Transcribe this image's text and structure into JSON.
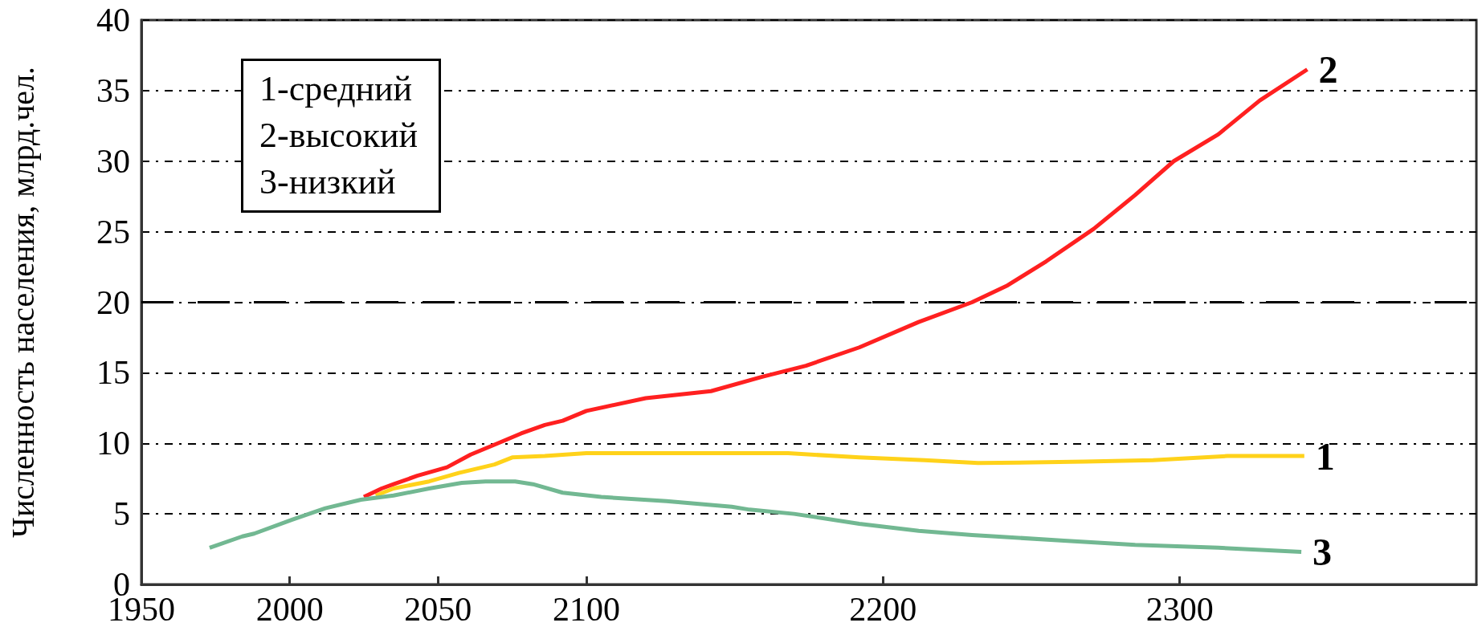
{
  "chart_data": {
    "type": "line",
    "ylabel": "Численность населения, млрд.чел.",
    "xlim": [
      1950,
      2400
    ],
    "xticks": [
      1950,
      2000,
      2050,
      2100,
      2200,
      2300
    ],
    "ylim": [
      0,
      40
    ],
    "yticks": [
      0,
      5,
      10,
      15,
      20,
      25,
      30,
      35,
      40
    ],
    "grid": "y",
    "legend": false,
    "annotations": [
      "1-средний",
      "2-высокий",
      "3-низкий"
    ],
    "ref_lines": [
      {
        "axis": "y",
        "value": 20,
        "label": null,
        "color": "#000000",
        "line_style": "dashed"
      }
    ],
    "series": [
      {
        "name": "1",
        "color": "#ffd21a",
        "x": [
          2029,
          2035,
          2047,
          2057,
          2069,
          2075,
          2086,
          2100,
          2168,
          2192,
          2214,
          2232,
          2268,
          2291,
          2316,
          2342
        ],
        "values": [
          6.3,
          6.8,
          7.3,
          7.9,
          8.5,
          9.0,
          9.1,
          9.3,
          9.3,
          9.0,
          8.8,
          8.6,
          8.7,
          8.8,
          9.1,
          9.1
        ]
      },
      {
        "name": "2",
        "color": "#ff2020",
        "x": [
          2025,
          2031,
          2035,
          2043,
          2053,
          2061,
          2069,
          2078,
          2086,
          2092,
          2100,
          2120,
          2142,
          2159,
          2174,
          2192,
          2212,
          2230,
          2242,
          2255,
          2271,
          2285,
          2298,
          2313,
          2327,
          2343
        ],
        "values": [
          6.2,
          6.8,
          7.1,
          7.7,
          8.3,
          9.2,
          9.9,
          10.7,
          11.3,
          11.6,
          12.3,
          13.2,
          13.7,
          14.7,
          15.5,
          16.8,
          18.6,
          20.0,
          21.2,
          22.9,
          25.2,
          27.6,
          30.0,
          31.9,
          34.3,
          36.5
        ]
      },
      {
        "name": "3",
        "color": "#72b892",
        "x": [
          1973,
          1984,
          1988,
          2001,
          2012,
          2024,
          2035,
          2047,
          2058,
          2066,
          2076,
          2082,
          2092,
          2105,
          2127,
          2149,
          2155,
          2170,
          2192,
          2212,
          2230,
          2238,
          2261,
          2285,
          2313,
          2341
        ],
        "values": [
          2.6,
          3.4,
          3.6,
          4.6,
          5.4,
          6.0,
          6.3,
          6.8,
          7.2,
          7.3,
          7.3,
          7.1,
          6.5,
          6.2,
          5.9,
          5.5,
          5.3,
          5.0,
          4.3,
          3.8,
          3.5,
          3.4,
          3.1,
          2.8,
          2.6,
          2.3
        ]
      }
    ]
  }
}
